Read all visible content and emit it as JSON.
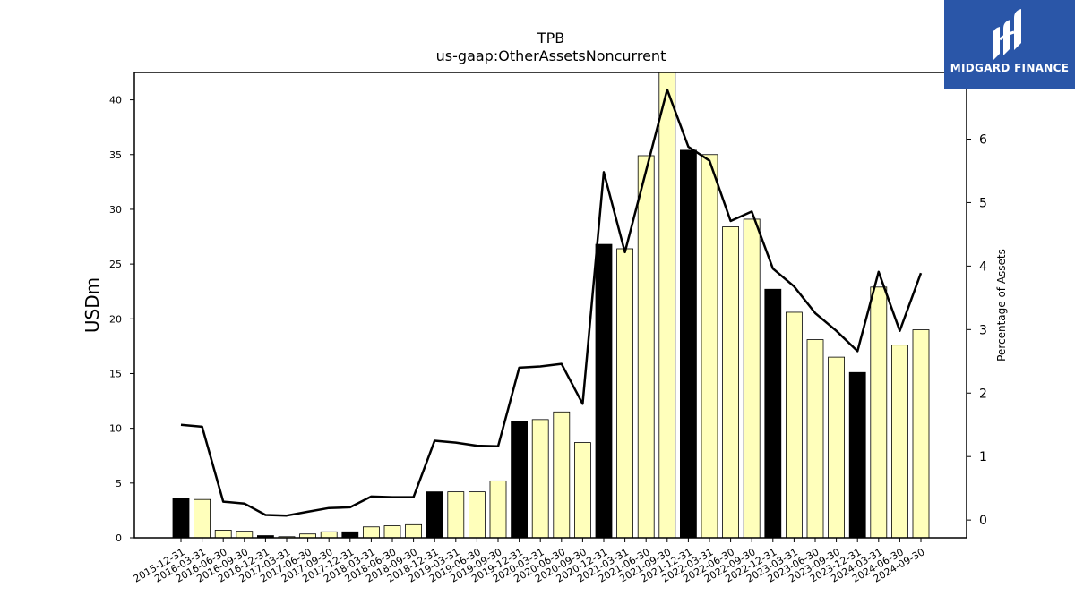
{
  "logo": {
    "text": "MIDGARD FINANCE"
  },
  "chart_data": {
    "type": "bar",
    "title": "TPB",
    "subtitle": "us-gaap:OtherAssetsNoncurrent",
    "ylabel": "USDm",
    "y2label": "Percentage of Assets",
    "ylim": [
      0,
      42.5
    ],
    "y2lim": [
      -0.28,
      7.05
    ],
    "yticks": [
      0,
      5,
      10,
      15,
      20,
      25,
      30,
      35,
      40
    ],
    "y2ticks": [
      0,
      1,
      2,
      3,
      4,
      5,
      6
    ],
    "colors": {
      "q4_bar": "#000000",
      "other_bar": "#ffffbb",
      "line": "#000000"
    },
    "categories": [
      "2015-12-31",
      "2016-03-31",
      "2016-06-30",
      "2016-09-30",
      "2016-12-31",
      "2017-03-31",
      "2017-06-30",
      "2017-09-30",
      "2017-12-31",
      "2018-03-31",
      "2018-06-30",
      "2018-09-30",
      "2018-12-31",
      "2019-03-31",
      "2019-06-30",
      "2019-09-30",
      "2019-12-31",
      "2020-03-31",
      "2020-06-30",
      "2020-09-30",
      "2020-12-31",
      "2021-03-31",
      "2021-06-30",
      "2021-09-30",
      "2021-12-31",
      "2022-03-31",
      "2022-06-30",
      "2022-09-30",
      "2022-12-31",
      "2023-03-31",
      "2023-06-30",
      "2023-09-30",
      "2023-12-31",
      "2024-03-31",
      "2024-06-30",
      "2024-09-30"
    ],
    "series": [
      {
        "axis": "left",
        "kind": "bar",
        "values": [
          3.6,
          3.5,
          0.7,
          0.6,
          0.2,
          0.1,
          0.35,
          0.55,
          0.55,
          1.0,
          1.1,
          1.2,
          4.2,
          4.2,
          4.2,
          5.2,
          10.6,
          10.8,
          11.5,
          8.7,
          26.8,
          26.4,
          34.9,
          42.5,
          35.4,
          35.0,
          28.4,
          29.1,
          22.7,
          20.6,
          18.1,
          16.5,
          15.1,
          22.9,
          17.6,
          19.0
        ]
      },
      {
        "axis": "right",
        "kind": "line",
        "values": [
          1.5,
          1.47,
          0.29,
          0.26,
          0.08,
          0.07,
          0.13,
          0.19,
          0.2,
          0.37,
          0.36,
          0.36,
          1.25,
          1.22,
          1.17,
          1.16,
          2.4,
          2.42,
          2.46,
          1.83,
          5.48,
          4.22,
          5.5,
          6.78,
          5.88,
          5.66,
          4.71,
          4.86,
          3.96,
          3.68,
          3.26,
          2.98,
          2.66,
          3.91,
          2.98,
          3.89
        ]
      }
    ]
  }
}
